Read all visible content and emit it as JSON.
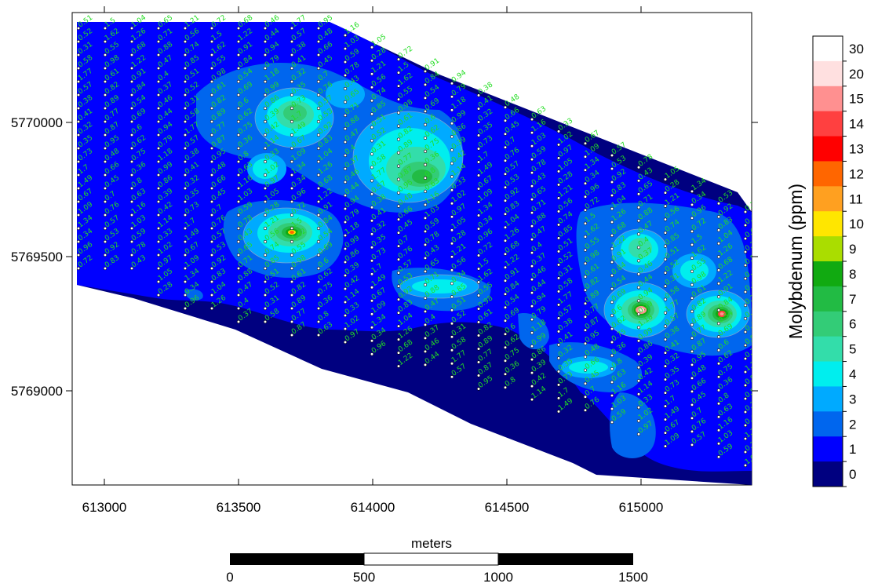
{
  "map": {
    "x_ticks": [
      "613000",
      "613500",
      "614000",
      "614500",
      "615000"
    ],
    "y_ticks": [
      "5770000",
      "5769500",
      "5769000"
    ]
  },
  "legend": {
    "title": "Molybdenum (ppm)",
    "labels": [
      "30",
      "20",
      "15",
      "14",
      "13",
      "12",
      "11",
      "10",
      "9",
      "8",
      "7",
      "6",
      "5",
      "4",
      "3",
      "2",
      "1",
      "0"
    ],
    "colors": [
      "#ffffff",
      "#ffe0e0",
      "#ff9090",
      "#ff4040",
      "#ff0000",
      "#ff6600",
      "#ffa020",
      "#ffe600",
      "#aadd00",
      "#11aa11",
      "#22bb44",
      "#33cc77",
      "#33ddaa",
      "#00eeee",
      "#00aaff",
      "#0066ee",
      "#0000ff",
      "#000080"
    ]
  },
  "scale_bar": {
    "title": "meters",
    "labels": [
      "0",
      "500",
      "1000",
      "1500"
    ]
  },
  "sample_values": [
    "0.51",
    "0.52",
    "0.31",
    "0.58",
    "1.77",
    "0.57",
    "0.38",
    "0.41",
    "0.32",
    "0.35",
    "0.73",
    "1.7",
    "1.49",
    "0.67",
    "1.09",
    "1.34",
    "0.34",
    "0.96",
    "0.72",
    "1.5",
    "1.62",
    "0.55",
    "0.98",
    "0.61",
    "0.82",
    "0.89",
    "0.77",
    "0.87",
    "0.95",
    "0.48",
    "0.66",
    "0.45",
    "0.7",
    "0.76",
    "0.57",
    "0.53",
    "0.92",
    "0.83",
    "1.04",
    "1.26",
    "0.68",
    "1.22",
    "0.91",
    "0.84",
    "0.54",
    "0.69",
    "0.6",
    "0.62",
    "0.75",
    "0.36",
    "0.8",
    "0.63",
    "1.16",
    "1.03",
    "0.59",
    "0.78",
    "0.43",
    "0.65",
    "0.71",
    "0.88",
    "0.47",
    "0.4",
    "0.37",
    "0.46",
    "0.44",
    "0.94",
    "0.79",
    "1.18",
    "0.99",
    "0.86",
    "0.39",
    "0.42",
    "1.14",
    "0.33",
    "1.02",
    "0.97",
    "1.05",
    "0.28",
    "1.21",
    "0.56",
    "0.74",
    "0.85"
  ]
}
